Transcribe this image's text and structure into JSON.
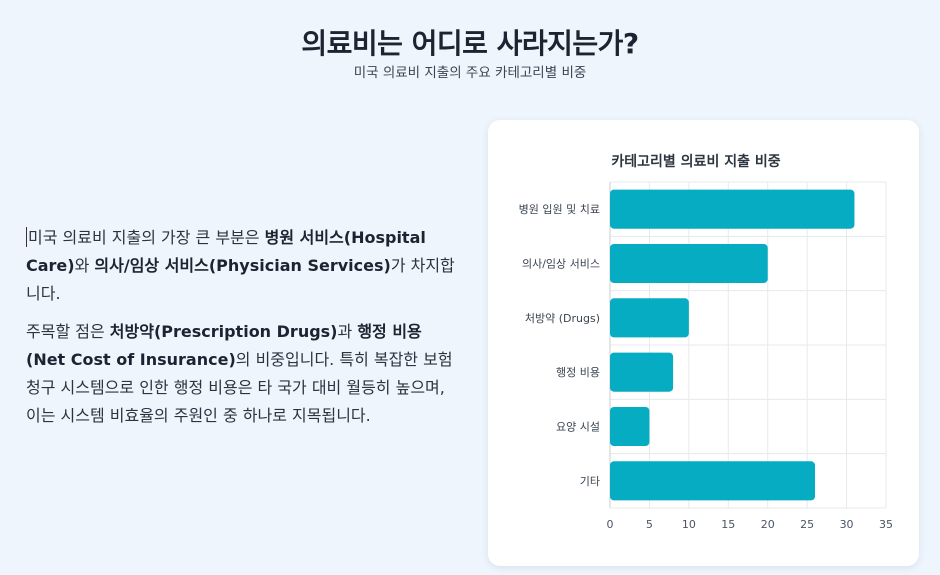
{
  "header": {
    "title": "의료비는 어디로 사라지는가?",
    "subtitle": "미국 의료비 지출의 주요 카테고리별 비중"
  },
  "text": {
    "p1": {
      "t1": "미국 의료비 지출의 가장 큰 부분은 ",
      "b1": "병원 서비스(Hospital Care)",
      "t2": "와 ",
      "b2": "의사/임상 서비스(Physician Services)",
      "t3": "가 차지합니다."
    },
    "p2": {
      "t1": "주목할 점은 ",
      "b1": "처방약(Prescription Drugs)",
      "t2": "과 ",
      "b2": "행정 비용(Net Cost of Insurance)",
      "t3": "의 비중입니다. 특히 복잡한 보험 청구 시스템으로 인한 행정 비용은 타 국가 대비 월등히 높으며, 이는 시스템 비효율의 주원인 중 하나로 지목됩니다."
    }
  },
  "colors": {
    "bar": "#06acc1",
    "grid": "#e6e9ed",
    "axis": "#c9ced4"
  },
  "chart_data": {
    "type": "bar",
    "orientation": "horizontal",
    "title": "카테고리별 의료비 지출 비중",
    "categories": [
      "병원 입원 및 치료",
      "의사/임상 서비스",
      "처방약 (Drugs)",
      "행정 비용",
      "요양 시설",
      "기타"
    ],
    "values": [
      31,
      20,
      10,
      8,
      5,
      26
    ],
    "xlim": [
      0,
      35
    ],
    "xticks": [
      0,
      5,
      10,
      15,
      20,
      25,
      30,
      35
    ],
    "xlabel": "",
    "ylabel": "",
    "grid": true,
    "legend": "none"
  }
}
